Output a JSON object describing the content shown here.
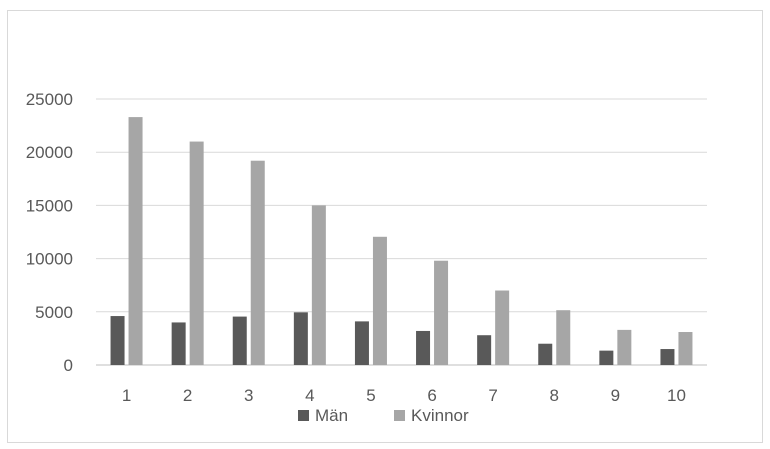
{
  "chart_data": {
    "type": "bar",
    "title": "",
    "xlabel": "",
    "ylabel": "",
    "categories": [
      "1",
      "2",
      "3",
      "4",
      "5",
      "6",
      "7",
      "8",
      "9",
      "10"
    ],
    "series": [
      {
        "name": "Män",
        "color": "#595959",
        "values": [
          4600,
          4000,
          4550,
          4950,
          4100,
          3200,
          2800,
          2000,
          1350,
          1500
        ]
      },
      {
        "name": "Kvinnor",
        "color": "#a6a6a6",
        "values": [
          23300,
          21000,
          19200,
          15000,
          12050,
          9800,
          7000,
          5150,
          3300,
          3100
        ]
      }
    ],
    "ylim": [
      0,
      25000
    ],
    "yticks": [
      "0",
      "5000",
      "10000",
      "15000",
      "20000",
      "25000"
    ],
    "grid": true,
    "legend_position": "bottom"
  }
}
